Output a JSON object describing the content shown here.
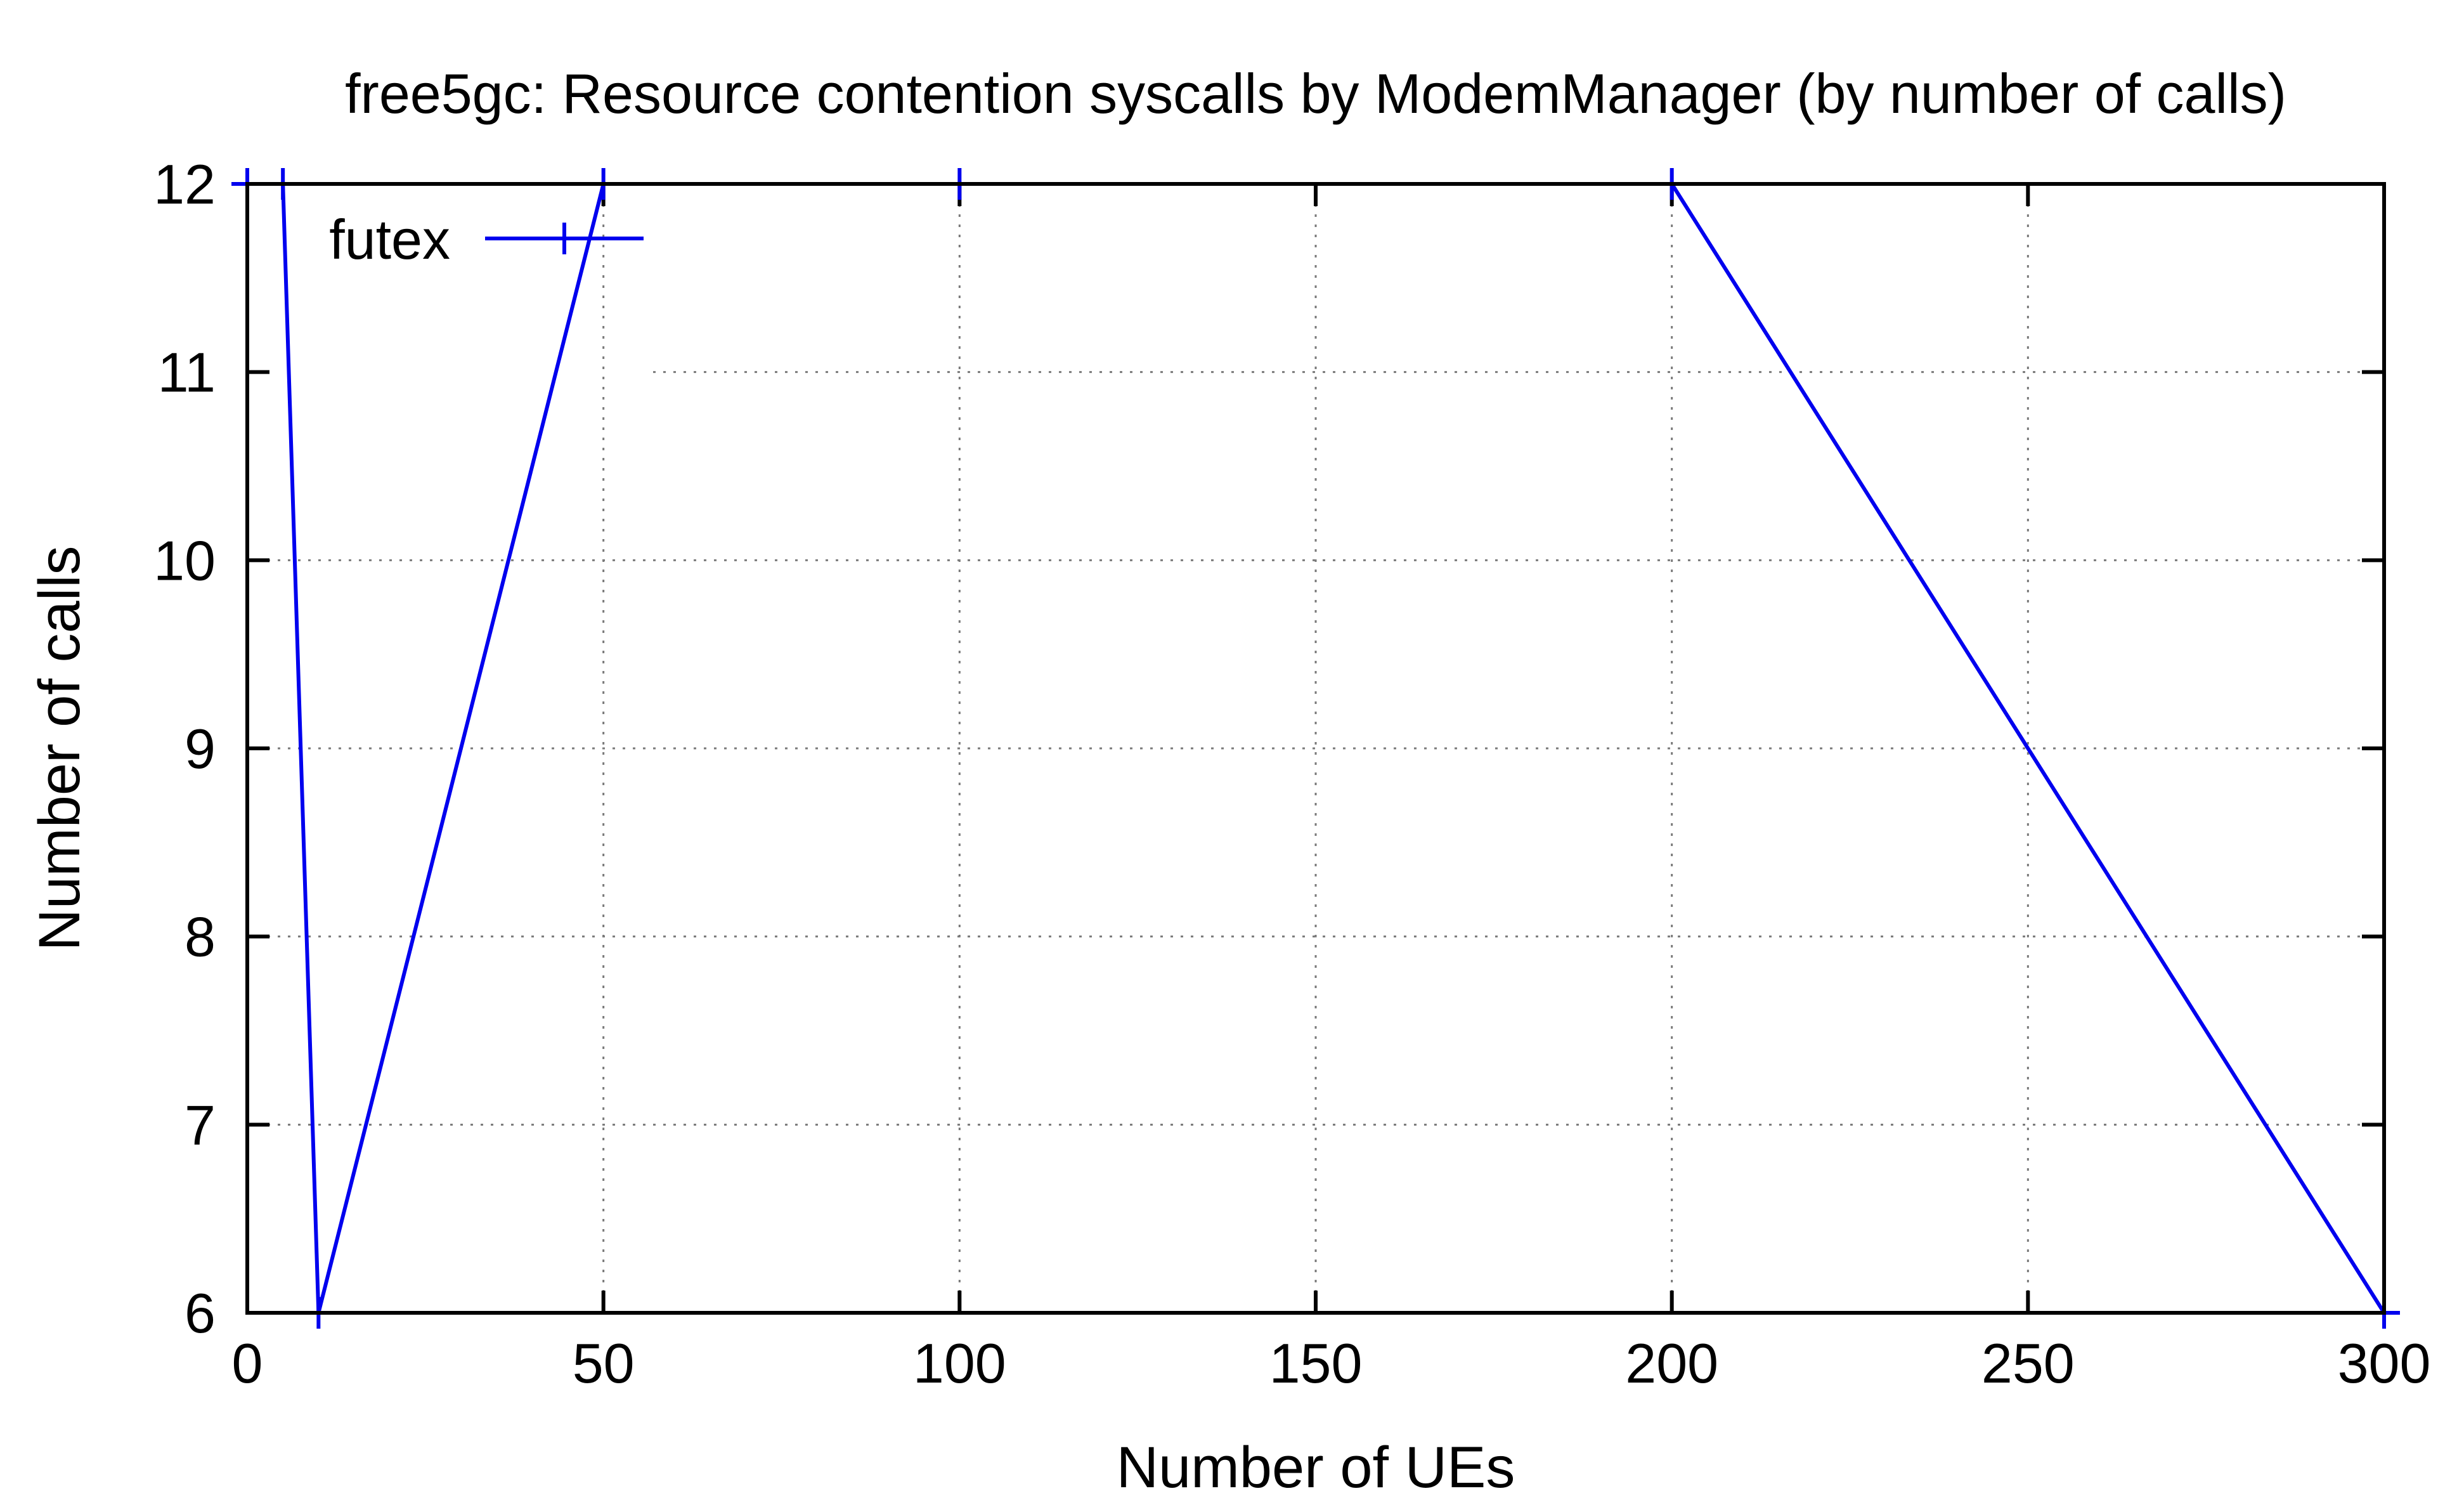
{
  "chart_data": {
    "type": "line",
    "title": "free5gc: Resource contention syscalls by ModemManager (by number of calls)",
    "xlabel": "Number of UEs",
    "ylabel": "Number of calls",
    "xlim": [
      0,
      300
    ],
    "ylim": [
      6,
      12
    ],
    "xticks": [
      0,
      50,
      100,
      150,
      200,
      250,
      300
    ],
    "yticks": [
      6,
      7,
      8,
      9,
      10,
      11,
      12
    ],
    "grid": true,
    "legend_position": "top-left",
    "series": [
      {
        "name": "futex",
        "color": "#0000ee",
        "marker": "plus",
        "x": [
          0,
          5,
          10,
          50,
          100,
          200,
          300
        ],
        "y": [
          12,
          12,
          6,
          12,
          12,
          12,
          6
        ]
      }
    ]
  }
}
